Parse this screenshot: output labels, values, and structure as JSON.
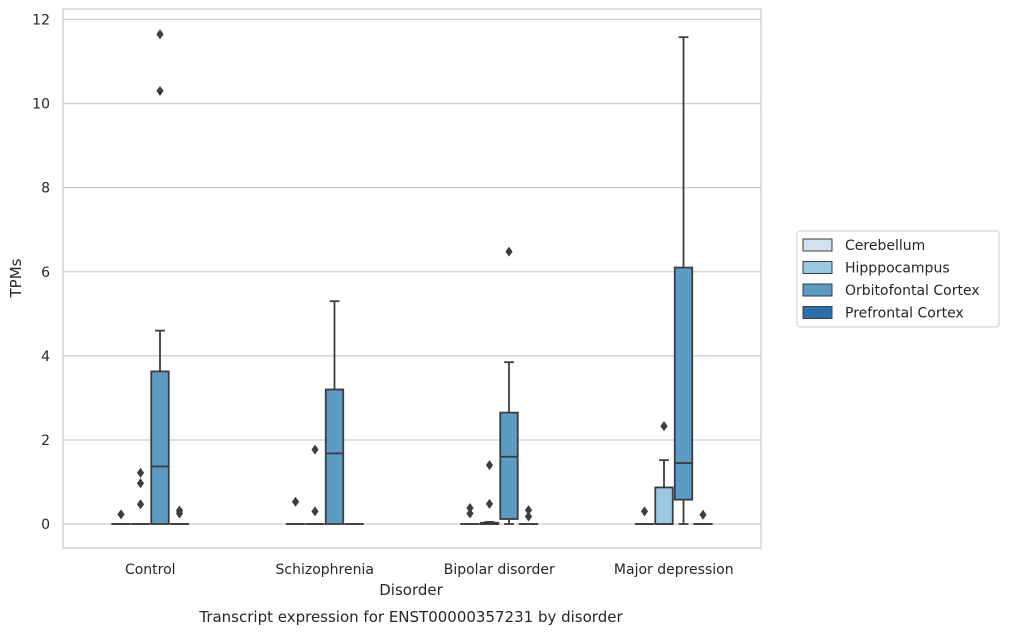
{
  "chart_data": {
    "type": "box",
    "title": "",
    "caption": "Transcript expression for ENST00000357231 by disorder",
    "xlabel": "Disorder",
    "ylabel": "TPMs",
    "categories": [
      "Control",
      "Schizophrenia",
      "Bipolar disorder",
      "Major depression"
    ],
    "ylim": [
      -0.57,
      12.25
    ],
    "yticks": [
      0,
      2,
      4,
      6,
      8,
      10,
      12
    ],
    "grid": "horizontal",
    "legend_position": "right",
    "series": [
      {
        "name": "Cerebellum",
        "color": "#d0e1f1",
        "boxes": [
          {
            "q1": 0,
            "median": 0,
            "q3": 0,
            "whisker_low": 0,
            "whisker_high": 0,
            "outliers": [
              0.23
            ]
          },
          {
            "q1": 0,
            "median": 0,
            "q3": 0,
            "whisker_low": 0,
            "whisker_high": 0,
            "outliers": [
              0.53
            ]
          },
          {
            "q1": 0,
            "median": 0,
            "q3": 0,
            "whisker_low": 0,
            "whisker_high": 0,
            "outliers": [
              0.25,
              0.38
            ]
          },
          {
            "q1": 0,
            "median": 0,
            "q3": 0,
            "whisker_low": 0,
            "whisker_high": 0,
            "outliers": [
              0.3
            ]
          }
        ]
      },
      {
        "name": "Hipppocampus",
        "color": "#9ac8e0",
        "boxes": [
          {
            "q1": 0,
            "median": 0,
            "q3": 0,
            "whisker_low": 0,
            "whisker_high": 0,
            "outliers": [
              0.47,
              0.97,
              1.22
            ]
          },
          {
            "q1": 0,
            "median": 0,
            "q3": 0,
            "whisker_low": 0,
            "whisker_high": 0,
            "outliers": [
              0.3,
              1.77
            ]
          },
          {
            "q1": 0,
            "median": 0,
            "q3": 0.03,
            "whisker_low": 0,
            "whisker_high": 0.05,
            "outliers": [
              0.48,
              1.4
            ]
          },
          {
            "q1": 0,
            "median": 0,
            "q3": 0.87,
            "whisker_low": 0,
            "whisker_high": 1.52,
            "outliers": [
              2.33
            ]
          }
        ]
      },
      {
        "name": "Orbitofontal Cortex",
        "color": "#5b9bc4",
        "boxes": [
          {
            "q1": 0,
            "median": 1.37,
            "q3": 3.63,
            "whisker_low": 0,
            "whisker_high": 4.6,
            "outliers": [
              10.3,
              11.65
            ]
          },
          {
            "q1": 0,
            "median": 1.68,
            "q3": 3.2,
            "whisker_low": 0,
            "whisker_high": 5.3,
            "outliers": []
          },
          {
            "q1": 0.12,
            "median": 1.6,
            "q3": 2.65,
            "whisker_low": 0,
            "whisker_high": 3.85,
            "outliers": [
              6.48
            ]
          },
          {
            "q1": 0.58,
            "median": 1.45,
            "q3": 6.1,
            "whisker_low": 0,
            "whisker_high": 11.58,
            "outliers": []
          }
        ]
      },
      {
        "name": "Prefrontal Cortex",
        "color": "#2c6ea9",
        "boxes": [
          {
            "q1": 0,
            "median": 0,
            "q3": 0,
            "whisker_low": 0,
            "whisker_high": 0,
            "outliers": [
              0.25,
              0.32
            ]
          },
          {
            "q1": 0,
            "median": 0,
            "q3": 0,
            "whisker_low": 0,
            "whisker_high": 0,
            "outliers": []
          },
          {
            "q1": 0,
            "median": 0,
            "q3": 0,
            "whisker_low": 0,
            "whisker_high": 0,
            "outliers": [
              0.18,
              0.33
            ]
          },
          {
            "q1": 0,
            "median": 0,
            "q3": 0,
            "whisker_low": 0,
            "whisker_high": 0,
            "outliers": [
              0.22
            ]
          }
        ]
      }
    ]
  }
}
